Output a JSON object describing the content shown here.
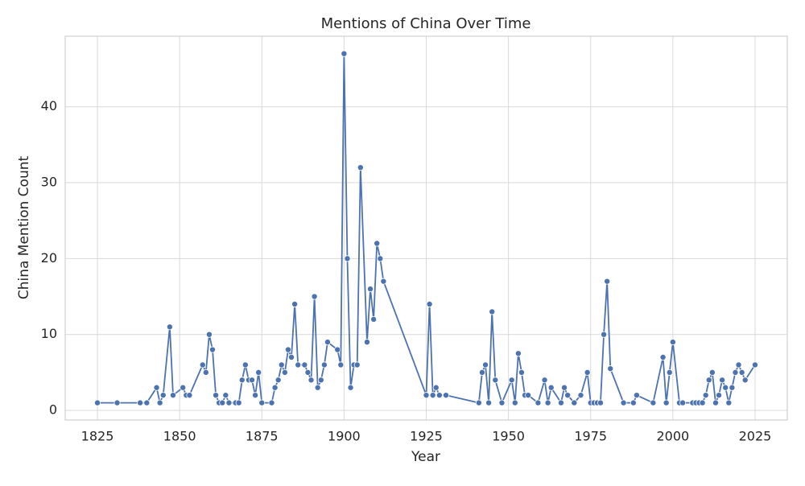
{
  "chart_data": {
    "type": "line",
    "title": "Mentions of China Over Time",
    "x_label": "Year",
    "y_label": "China Mention Count",
    "x": [
      1825,
      1831,
      1838,
      1840,
      1843,
      1844,
      1845,
      1847,
      1848,
      1851,
      1852,
      1853,
      1857,
      1858,
      1859,
      1860,
      1861,
      1862,
      1863,
      1864,
      1865,
      1867,
      1868,
      1869,
      1870,
      1871,
      1872,
      1873,
      1874,
      1875,
      1878,
      1879,
      1880,
      1881,
      1882,
      1883,
      1884,
      1885,
      1886,
      1888,
      1889,
      1890,
      1891,
      1892,
      1893,
      1894,
      1895,
      1898,
      1899,
      1900,
      1901,
      1902,
      1903,
      1904,
      1905,
      1907,
      1908,
      1909,
      1910,
      1911,
      1912,
      1925,
      1926,
      1927,
      1928,
      1929,
      1931,
      1941,
      1942,
      1943,
      1944,
      1945,
      1946,
      1948,
      1951,
      1952,
      1953,
      1954,
      1955,
      1956,
      1959,
      1961,
      1962,
      1963,
      1966,
      1967,
      1968,
      1970,
      1972,
      1974,
      1975,
      1976,
      1977,
      1978,
      1979,
      1980,
      1981,
      1985,
      1988,
      1989,
      1994,
      1997,
      1998,
      1999,
      2000,
      2002,
      2003,
      2006,
      2007,
      2008,
      2009,
      2010,
      2011,
      2012,
      2013,
      2014,
      2015,
      2016,
      2017,
      2018,
      2019,
      2020,
      2021,
      2022,
      2025
    ],
    "series": [
      {
        "name": "China",
        "color": "#4c72b0",
        "values": [
          1,
          1,
          1,
          1,
          3,
          1,
          2,
          11,
          2,
          3,
          2,
          2,
          6,
          5,
          10,
          8,
          2,
          1,
          1,
          2,
          1,
          1,
          1,
          4,
          6,
          4,
          4,
          2,
          5,
          1,
          1,
          3,
          4,
          6,
          5,
          8,
          7,
          14,
          6,
          6,
          5,
          4,
          15,
          3,
          4,
          6,
          9,
          8,
          6,
          47,
          20,
          3,
          6,
          6,
          32,
          9,
          16,
          12,
          22,
          20,
          17,
          2,
          14,
          2,
          3,
          2,
          2,
          1,
          5,
          6,
          1,
          13,
          4,
          1,
          4,
          1,
          7.5,
          5,
          2,
          2,
          1,
          4,
          1,
          3,
          1,
          3,
          2,
          1,
          2,
          5,
          1,
          1,
          1,
          1,
          10,
          17,
          5.5,
          1,
          1,
          2,
          1,
          7,
          1,
          5,
          9,
          1,
          1,
          1,
          1,
          1,
          1,
          2,
          4,
          5,
          1,
          2,
          4,
          3,
          1,
          3,
          5,
          6,
          5,
          4,
          6
        ]
      }
    ],
    "xlim": [
      1815.2,
      2034.8
    ],
    "xticks": [
      1825,
      1850,
      1875,
      1900,
      1925,
      1950,
      1975,
      2000,
      2025
    ],
    "ylim": [
      -1.27,
      49.3
    ],
    "yticks": [
      0,
      10,
      20,
      30,
      40
    ],
    "grid": true
  }
}
